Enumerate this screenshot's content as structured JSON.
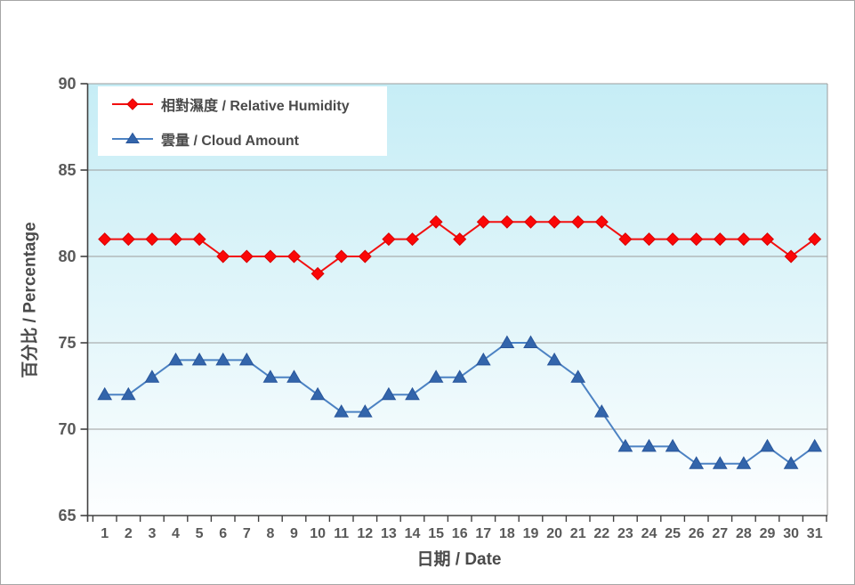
{
  "window": {
    "background": "#ffffff",
    "frame_border_color": "#a6a6a6"
  },
  "chart_data": {
    "type": "line",
    "title": "",
    "xlabel": "日期 / Date",
    "ylabel": "百分比 / Percentage",
    "x": [
      1,
      2,
      3,
      4,
      5,
      6,
      7,
      8,
      9,
      10,
      11,
      12,
      13,
      14,
      15,
      16,
      17,
      18,
      19,
      20,
      21,
      22,
      23,
      24,
      25,
      26,
      27,
      28,
      29,
      30,
      31
    ],
    "ylim": [
      65,
      90
    ],
    "ytick_step": 5,
    "grid": true,
    "legend_position": "top-left",
    "plot_background_top": "#c6edf6",
    "plot_background_mid": "#e3f6fa",
    "plot_background_bottom": "#fdfeff",
    "grid_color": "#9c9c9c",
    "axis_color": "#404040",
    "tick_label_color": "#595959",
    "series": [
      {
        "name": "相對濕度 / Relative Humidity",
        "marker": "diamond",
        "line_color": "#f20f0f",
        "marker_color": "#fb0707",
        "marker_edge_color": "#d80000",
        "values": [
          81,
          81,
          81,
          81,
          81,
          80,
          80,
          80,
          80,
          79,
          80,
          80,
          81,
          81,
          82,
          81,
          82,
          82,
          82,
          82,
          82,
          82,
          81,
          81,
          81,
          81,
          81,
          81,
          81,
          80,
          81
        ]
      },
      {
        "name": "雲量 / Cloud Amount",
        "marker": "triangle-up",
        "line_color": "#4c82c3",
        "marker_color": "#3365ab",
        "marker_edge_color": "#29569b",
        "values": [
          72,
          72,
          73,
          74,
          74,
          74,
          74,
          73,
          73,
          72,
          71,
          71,
          72,
          72,
          73,
          73,
          74,
          75,
          75,
          74,
          73,
          71,
          69,
          69,
          69,
          68,
          68,
          68,
          69,
          68,
          69
        ]
      }
    ]
  }
}
